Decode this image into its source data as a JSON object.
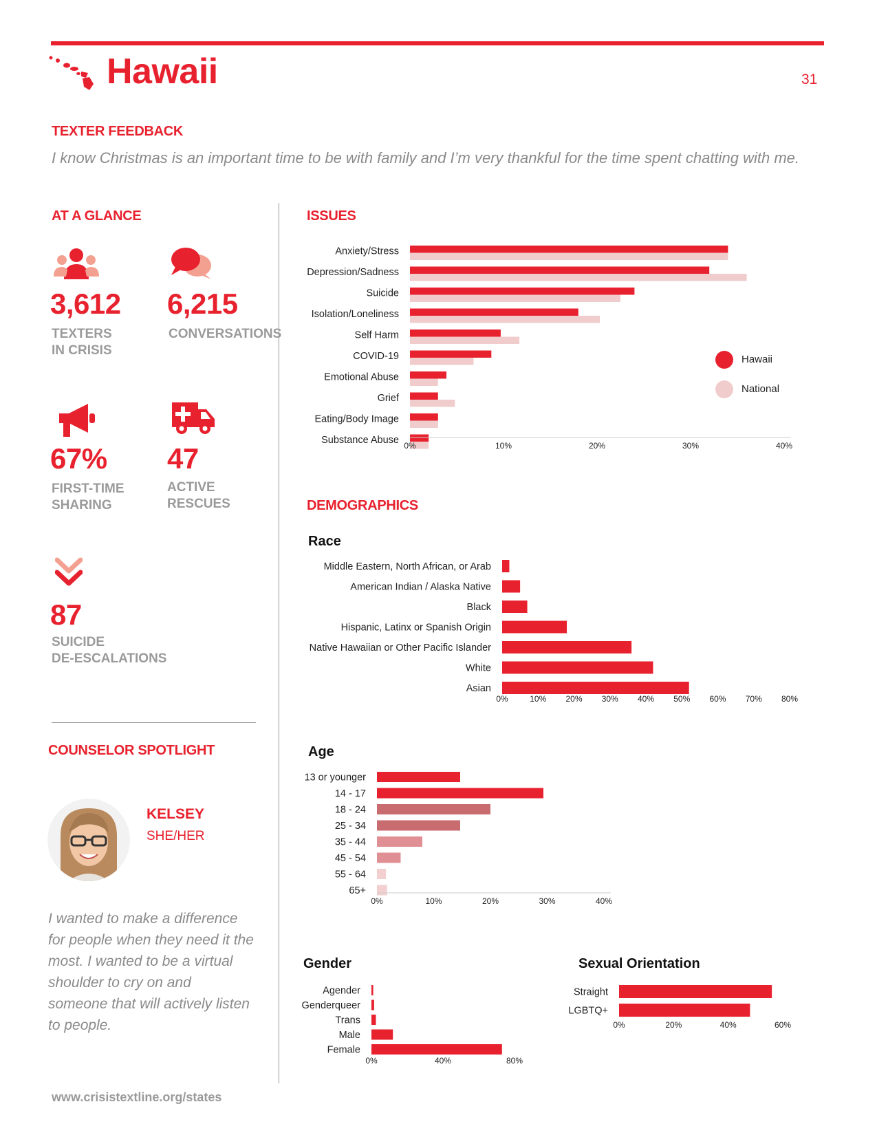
{
  "header": {
    "state": "Hawaii",
    "page_number": "31"
  },
  "feedback": {
    "heading": "TEXTER FEEDBACK",
    "quote": "I know Christmas is an important time to be with family and I’m very thankful for the time spent chatting with me."
  },
  "glance": {
    "heading": "AT A GLANCE",
    "texters": {
      "value": "3,612",
      "label1": "TEXTERS",
      "label2": "IN CRISIS",
      "icon": "people-icon"
    },
    "conversations": {
      "value": "6,215",
      "label1": "CONVERSATIONS",
      "icon": "chat-bubbles-icon"
    },
    "first_time": {
      "value": "67%",
      "label1": "FIRST-TIME",
      "label2": "SHARING",
      "icon": "megaphone-icon"
    },
    "rescues": {
      "value": "47",
      "label1": "ACTIVE",
      "label2": "RESCUES",
      "icon": "ambulance-icon"
    },
    "deescalations": {
      "value": "87",
      "label1": "SUICIDE",
      "label2": "DE-ESCALATIONS",
      "icon": "double-chevron-down-icon"
    }
  },
  "spotlight": {
    "heading": "COUNSELOR SPOTLIGHT",
    "name": "KELSEY",
    "pronouns": "SHE/HER",
    "quote": "I wanted to make a difference for people when they need it the most. I wanted to be a virtual shoulder to cry on and someone that will actively listen to people."
  },
  "footer": {
    "url": "www.crisistextline.org/states"
  },
  "issues": {
    "heading": "ISSUES"
  },
  "demographics": {
    "heading": "DEMOGRAPHICS"
  },
  "colors": {
    "accent": "#e8212e",
    "national": "#f0cccc",
    "age_dark": "#c96c70",
    "age_mid": "#e09094",
    "age_light": "#f3cfd0"
  },
  "chart_data": [
    {
      "id": "issues",
      "type": "bar",
      "orientation": "horizontal",
      "categories": [
        "Anxiety/Stress",
        "Depression/Sadness",
        "Suicide",
        "Isolation/Loneliness",
        "Self Harm",
        "COVID-19",
        "Emotional Abuse",
        "Grief",
        "Eating/Body Image",
        "Substance Abuse"
      ],
      "series": [
        {
          "name": "Hawaii",
          "color": "#e8212e",
          "values": [
            34,
            32,
            24,
            18,
            9.7,
            8.7,
            3.9,
            3,
            3,
            2
          ]
        },
        {
          "name": "National",
          "color": "#f0cccc",
          "values": [
            34,
            36,
            22.5,
            20.3,
            11.7,
            6.8,
            3,
            4.8,
            3,
            2
          ]
        }
      ],
      "xticks": [
        "0%",
        "10%",
        "20%",
        "30%",
        "40%"
      ],
      "xlim": [
        0,
        40
      ],
      "legend": "right"
    },
    {
      "id": "race",
      "type": "bar",
      "orientation": "horizontal",
      "title": "Race",
      "categories": [
        "Middle Eastern, North African, or Arab",
        "American Indian / Alaska Native",
        "Black",
        "Hispanic, Latinx or Spanish Origin",
        "Native Hawaiian or Other Pacific Islander",
        "White",
        "Asian"
      ],
      "values": [
        2,
        5,
        7,
        18,
        36,
        42,
        52
      ],
      "xticks": [
        "0%",
        "10%",
        "20%",
        "30%",
        "40%",
        "50%",
        "60%",
        "70%",
        "80%"
      ],
      "xlim": [
        0,
        80
      ]
    },
    {
      "id": "age",
      "type": "bar",
      "orientation": "horizontal",
      "title": "Age",
      "categories": [
        "13 or younger",
        "14 - 17",
        "18 - 24",
        "25 - 34",
        "35 - 44",
        "45 - 54",
        "55 - 64",
        "65+"
      ],
      "values": [
        16.5,
        33,
        22.5,
        16.5,
        9,
        4.7,
        1.8,
        2
      ],
      "xticks": [
        "0%",
        "10%",
        "20%",
        "30%",
        "40%"
      ],
      "xlim": [
        0,
        45
      ]
    },
    {
      "id": "gender",
      "type": "bar",
      "orientation": "horizontal",
      "title": "Gender",
      "categories": [
        "Agender",
        "Genderqueer",
        "Trans",
        "Male",
        "Female"
      ],
      "values": [
        1,
        1.5,
        2.5,
        12,
        73
      ],
      "xticks": [
        "0%",
        "40%",
        "80%"
      ],
      "xlim": [
        0,
        80
      ]
    },
    {
      "id": "orientation",
      "type": "bar",
      "orientation": "horizontal",
      "title": "Sexual Orientation",
      "categories": [
        "Straight",
        "LGBTQ+"
      ],
      "values": [
        56,
        48
      ],
      "xticks": [
        "0%",
        "20%",
        "40%",
        "60%"
      ],
      "xlim": [
        0,
        60
      ]
    }
  ]
}
